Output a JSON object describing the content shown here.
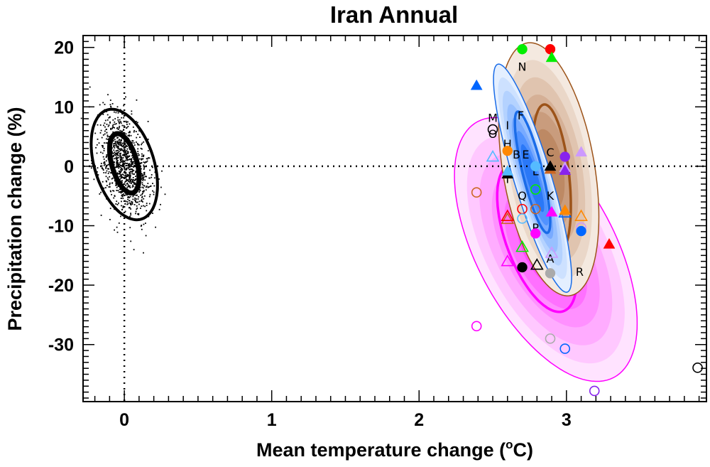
{
  "chart_data": {
    "type": "scatter",
    "title": "Iran Annual",
    "xlabel_parts": [
      "Mean temperature change (",
      "o",
      "C)"
    ],
    "ylabel": "Precipitation change (%)",
    "xlim": [
      -0.28,
      3.95
    ],
    "ylim": [
      -39.6,
      22
    ],
    "xticks": [
      0,
      1,
      2,
      3
    ],
    "xtick_labels": [
      "0",
      "1",
      "2",
      "3"
    ],
    "yticks": [
      20,
      10,
      0,
      -10,
      -20,
      -30
    ],
    "ytick_labels": [
      "20",
      "10",
      "0",
      "-10",
      "-20",
      "-30"
    ],
    "x_minor_step": 0.1,
    "y_minor_step": 1,
    "grid": false,
    "reference_lines": {
      "x": 0,
      "y": 0,
      "style": "dotted"
    },
    "natural_variability_cloud": {
      "n": 1100,
      "center": [
        0,
        0.3
      ],
      "sd_x": 0.085,
      "sd_y": 4.2,
      "correlation": -0.35,
      "color": "#000000"
    },
    "ellipses": [
      {
        "name": "pink-region",
        "center": [
          2.86,
          -14
        ],
        "A": 0.62,
        "B": 22.2,
        "phi_deg": 124,
        "fills": [
          "#ffe3ff",
          "#ffc8ff",
          "#ffacff",
          "#ff90ff",
          "#ff70ff",
          "#ff4cff"
        ],
        "outline": "#ff00ff",
        "inner": {
          "center": [
            2.8,
            -12
          ],
          "A": 0.27,
          "B": 12.5,
          "phi_deg": 124
        }
      },
      {
        "name": "brown-region",
        "center": [
          2.88,
          -0.5
        ],
        "A": 0.34,
        "B": 21.3,
        "phi_deg": 112,
        "fills": [
          "#f4e9e0",
          "#ead7c8",
          "#e0c4af",
          "#d5b096",
          "#c99c7d",
          "#bd8964"
        ],
        "outline": "#9c5319",
        "inner": {
          "center": [
            2.9,
            -2
          ],
          "A": 0.13,
          "B": 12.4,
          "phi_deg": 112
        }
      },
      {
        "name": "blue-region",
        "center": [
          2.77,
          -2
        ],
        "A": 0.265,
        "B": 19.2,
        "phi_deg": 150,
        "fills": [
          "#e4efff",
          "#cde1ff",
          "#b4d2ff",
          "#98c0ff",
          "#78aaff",
          "#5192ff",
          "#2a78f7"
        ],
        "outline": "#1a6ce8",
        "inner": {
          "center": [
            2.77,
            -1
          ],
          "A": 0.12,
          "B": 10.2,
          "phi_deg": 145
        }
      }
    ],
    "markers": [
      {
        "shape": "circle",
        "fill": true,
        "color": "#00ee00",
        "x": 2.7,
        "y": 19.7
      },
      {
        "shape": "circle",
        "fill": true,
        "color": "#ff0000",
        "x": 2.89,
        "y": 19.7
      },
      {
        "shape": "triangle",
        "fill": true,
        "color": "#00ee00",
        "x": 2.9,
        "y": 18.3
      },
      {
        "shape": "triangle",
        "fill": true,
        "color": "#0066ff",
        "x": 2.39,
        "y": 13.6
      },
      {
        "shape": "circle",
        "fill": false,
        "color": "#000000",
        "x": 2.5,
        "y": 6.2
      },
      {
        "shape": "triangle",
        "fill": false,
        "color": "#55bbff",
        "x": 2.5,
        "y": 1.6
      },
      {
        "shape": "circle",
        "fill": true,
        "color": "#ff8800",
        "x": 2.6,
        "y": 2.6
      },
      {
        "shape": "triangle",
        "fill": true,
        "color": "#cc99ff",
        "x": 3.1,
        "y": 2.4
      },
      {
        "shape": "circle",
        "fill": true,
        "color": "#8822ee",
        "x": 2.99,
        "y": 1.6
      },
      {
        "shape": "triangle",
        "fill": true,
        "color": "#cc6622",
        "x": 2.89,
        "y": -0.5
      },
      {
        "shape": "triangle",
        "fill": true,
        "color": "#000000",
        "x": 2.89,
        "y": 0.0
      },
      {
        "shape": "triangle",
        "fill": true,
        "color": "#cc99ff",
        "x": 2.99,
        "y": -0.2
      },
      {
        "shape": "triangle",
        "fill": true,
        "color": "#8822ee",
        "x": 2.99,
        "y": -0.7
      },
      {
        "shape": "circle",
        "fill": true,
        "color": "#55bbff",
        "x": 2.79,
        "y": 0.0
      },
      {
        "shape": "triangle",
        "fill": true,
        "color": "#000000",
        "x": 2.6,
        "y": -1.3
      },
      {
        "shape": "triangle",
        "fill": true,
        "color": "#55bbff",
        "x": 2.6,
        "y": -0.8
      },
      {
        "shape": "circle",
        "fill": false,
        "color": "#cc6622",
        "x": 2.39,
        "y": -4.4
      },
      {
        "shape": "circle",
        "fill": false,
        "color": "#00ee00",
        "x": 2.79,
        "y": -3.9
      },
      {
        "shape": "circle",
        "fill": false,
        "color": "#ff0000",
        "x": 2.7,
        "y": -7.2
      },
      {
        "shape": "circle",
        "fill": false,
        "color": "#cc6622",
        "x": 2.79,
        "y": -7.2
      },
      {
        "shape": "circle",
        "fill": false,
        "color": "#55bbff",
        "x": 2.7,
        "y": -8.8
      },
      {
        "shape": "triangle",
        "fill": true,
        "color": "#ff00ff",
        "x": 2.9,
        "y": -7.7
      },
      {
        "shape": "triangle",
        "fill": false,
        "color": "#0066ff",
        "x": 2.99,
        "y": -7.8
      },
      {
        "shape": "triangle",
        "fill": true,
        "color": "#ff8800",
        "x": 2.99,
        "y": -7.4
      },
      {
        "shape": "triangle",
        "fill": false,
        "color": "#cc6622",
        "x": 2.6,
        "y": -8.9
      },
      {
        "shape": "triangle",
        "fill": false,
        "color": "#ff0000",
        "x": 2.6,
        "y": -8.4
      },
      {
        "shape": "triangle",
        "fill": false,
        "color": "#ff8800",
        "x": 3.1,
        "y": -8.4
      },
      {
        "shape": "circle",
        "fill": false,
        "color": "#cc99ff",
        "x": 3.1,
        "y": -10.3
      },
      {
        "shape": "circle",
        "fill": true,
        "color": "#0066ff",
        "x": 3.1,
        "y": -10.9
      },
      {
        "shape": "circle",
        "fill": true,
        "color": "#ff00ff",
        "x": 2.79,
        "y": -11.3
      },
      {
        "shape": "triangle",
        "fill": true,
        "color": "#ff0000",
        "x": 3.29,
        "y": -13.1
      },
      {
        "shape": "triangle",
        "fill": false,
        "color": "#00ee00",
        "x": 2.7,
        "y": -13.6
      },
      {
        "shape": "triangle",
        "fill": false,
        "color": "#cc99ff",
        "x": 2.9,
        "y": -14.6
      },
      {
        "shape": "triangle",
        "fill": false,
        "color": "#ff00ff",
        "x": 2.6,
        "y": -16.0
      },
      {
        "shape": "circle",
        "fill": true,
        "color": "#000000",
        "x": 2.7,
        "y": -17.0
      },
      {
        "shape": "triangle",
        "fill": false,
        "color": "#000000",
        "x": 2.8,
        "y": -16.6
      },
      {
        "shape": "circle",
        "fill": true,
        "color": "#aaaaaa",
        "x": 2.89,
        "y": -18.0
      },
      {
        "shape": "circle",
        "fill": false,
        "color": "#ff00ff",
        "x": 2.39,
        "y": -26.9
      },
      {
        "shape": "circle",
        "fill": false,
        "color": "#aaaaaa",
        "x": 2.89,
        "y": -29.0
      },
      {
        "shape": "circle",
        "fill": false,
        "color": "#0066ff",
        "x": 2.99,
        "y": -30.7
      },
      {
        "shape": "circle",
        "fill": false,
        "color": "#8822ee",
        "x": 3.19,
        "y": -37.8
      },
      {
        "shape": "circle",
        "fill": false,
        "color": "#000000",
        "x": 3.89,
        "y": -33.9
      }
    ],
    "letters": [
      {
        "text": "N",
        "x": 2.7,
        "y": 16.8
      },
      {
        "text": "F",
        "x": 2.69,
        "y": 8.6
      },
      {
        "text": "M",
        "x": 2.5,
        "y": 7.6
      },
      {
        "text": "O",
        "x": 2.5,
        "y": 6.1
      },
      {
        "text": "I",
        "x": 2.6,
        "y": 6.9
      },
      {
        "text": "H",
        "x": 2.6,
        "y": 3.8
      },
      {
        "text": "B",
        "x": 2.69,
        "y": 2.0
      },
      {
        "text": "E",
        "x": 2.69,
        "y": 2.0
      },
      {
        "text": "C",
        "x": 2.89,
        "y": 2.4
      },
      {
        "text": "L",
        "x": 2.79,
        "y": -0.8
      },
      {
        "text": "T",
        "x": 2.6,
        "y": -2.1
      },
      {
        "text": "Q",
        "x": 2.7,
        "y": -4.9
      },
      {
        "text": "K",
        "x": 2.89,
        "y": -4.9
      },
      {
        "text": "P",
        "x": 2.79,
        "y": -10.3
      },
      {
        "text": "A",
        "x": 2.89,
        "y": -15.5
      },
      {
        "text": "R",
        "x": 3.09,
        "y": -17.7
      }
    ]
  }
}
